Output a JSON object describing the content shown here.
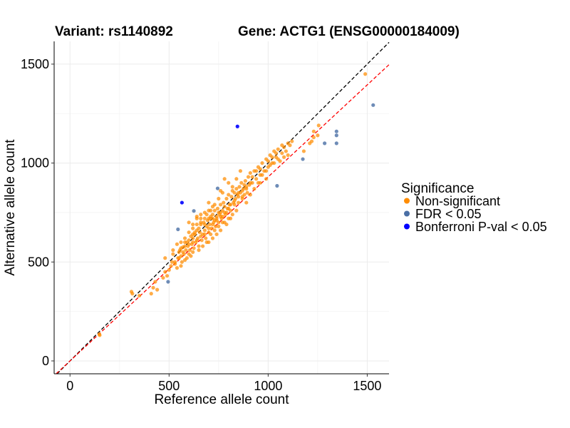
{
  "chart_data": {
    "type": "scatter",
    "title_left": "Variant: rs1140892",
    "title_right": "Gene: ACTG1 (ENSG00000184009)",
    "xlabel": "Reference allele count",
    "ylabel": "Alternative allele count",
    "xlim": [
      -80,
      1610
    ],
    "ylim": [
      -65,
      1615
    ],
    "xticks": [
      0,
      500,
      1000,
      1500
    ],
    "yticks": [
      0,
      500,
      1000,
      1500
    ],
    "grid": true,
    "reference_lines": [
      {
        "name": "identity",
        "slope": 1.0,
        "intercept": 0,
        "color": "#000000",
        "style": "dashed"
      },
      {
        "name": "fit",
        "slope": 0.93,
        "intercept": 0,
        "color": "#ff0000",
        "style": "dashed"
      }
    ],
    "legend": {
      "title": "Significance",
      "position": "right",
      "entries": [
        {
          "label": "Non-significant",
          "color": "#ff8c00"
        },
        {
          "label": "FDR < 0.05",
          "color": "#4a6fa5"
        },
        {
          "label": "Bonferroni P-val < 0.05",
          "color": "#0000ff"
        }
      ]
    },
    "series": [
      {
        "name": "Non-significant",
        "color": "#ff8c00",
        "points": [
          [
            150,
            130
          ],
          [
            148,
            135
          ],
          [
            310,
            350
          ],
          [
            315,
            340
          ],
          [
            350,
            330
          ],
          [
            410,
            340
          ],
          [
            420,
            370
          ],
          [
            430,
            400
          ],
          [
            440,
            360
          ],
          [
            470,
            420
          ],
          [
            480,
            450
          ],
          [
            480,
            520
          ],
          [
            490,
            430
          ],
          [
            500,
            460
          ],
          [
            510,
            480
          ],
          [
            515,
            500
          ],
          [
            520,
            540
          ],
          [
            530,
            500
          ],
          [
            540,
            470
          ],
          [
            545,
            520
          ],
          [
            550,
            550
          ],
          [
            555,
            560
          ],
          [
            560,
            530
          ],
          [
            565,
            500
          ],
          [
            570,
            575
          ],
          [
            575,
            540
          ],
          [
            580,
            600
          ],
          [
            585,
            560
          ],
          [
            590,
            520
          ],
          [
            595,
            580
          ],
          [
            600,
            610
          ],
          [
            605,
            560
          ],
          [
            610,
            530
          ],
          [
            615,
            590
          ],
          [
            620,
            620
          ],
          [
            625,
            570
          ],
          [
            630,
            640
          ],
          [
            635,
            600
          ],
          [
            640,
            660
          ],
          [
            645,
            620
          ],
          [
            650,
            580
          ],
          [
            655,
            650
          ],
          [
            660,
            690
          ],
          [
            665,
            610
          ],
          [
            670,
            640
          ],
          [
            675,
            700
          ],
          [
            680,
            660
          ],
          [
            685,
            620
          ],
          [
            690,
            680
          ],
          [
            695,
            710
          ],
          [
            700,
            650
          ],
          [
            705,
            690
          ],
          [
            710,
            720
          ],
          [
            715,
            670
          ],
          [
            720,
            740
          ],
          [
            725,
            700
          ],
          [
            730,
            760
          ],
          [
            735,
            680
          ],
          [
            740,
            720
          ],
          [
            745,
            770
          ],
          [
            750,
            700
          ],
          [
            755,
            740
          ],
          [
            760,
            790
          ],
          [
            765,
            720
          ],
          [
            770,
            760
          ],
          [
            775,
            800
          ],
          [
            780,
            780
          ],
          [
            785,
            740
          ],
          [
            790,
            820
          ],
          [
            795,
            770
          ],
          [
            800,
            840
          ],
          [
            805,
            790
          ],
          [
            810,
            760
          ],
          [
            815,
            830
          ],
          [
            820,
            860
          ],
          [
            825,
            800
          ],
          [
            830,
            850
          ],
          [
            835,
            820
          ],
          [
            840,
            870
          ],
          [
            845,
            840
          ],
          [
            850,
            800
          ],
          [
            855,
            880
          ],
          [
            860,
            850
          ],
          [
            865,
            900
          ],
          [
            870,
            830
          ],
          [
            875,
            870
          ],
          [
            880,
            840
          ],
          [
            885,
            910
          ],
          [
            890,
            880
          ],
          [
            895,
            850
          ],
          [
            900,
            930
          ],
          [
            905,
            890
          ],
          [
            910,
            950
          ],
          [
            920,
            900
          ],
          [
            930,
            960
          ],
          [
            940,
            920
          ],
          [
            950,
            980
          ],
          [
            960,
            940
          ],
          [
            970,
            1000
          ],
          [
            980,
            960
          ],
          [
            990,
            1020
          ],
          [
            1000,
            980
          ],
          [
            1010,
            1040
          ],
          [
            1020,
            1000
          ],
          [
            1030,
            1060
          ],
          [
            1040,
            1030
          ],
          [
            1050,
            1070
          ],
          [
            1060,
            1010
          ],
          [
            1070,
            1050
          ],
          [
            1080,
            1030
          ],
          [
            1090,
            1060
          ],
          [
            1100,
            1040
          ],
          [
            1110,
            1090
          ],
          [
            1180,
            1060
          ],
          [
            1210,
            1100
          ],
          [
            1220,
            1110
          ],
          [
            1230,
            1130
          ],
          [
            1250,
            1140
          ],
          [
            1255,
            1190
          ],
          [
            1490,
            1450
          ],
          [
            600,
            700
          ],
          [
            620,
            690
          ],
          [
            640,
            720
          ],
          [
            660,
            740
          ],
          [
            680,
            750
          ],
          [
            700,
            760
          ],
          [
            720,
            780
          ],
          [
            640,
            730
          ],
          [
            660,
            700
          ],
          [
            690,
            740
          ],
          [
            710,
            760
          ],
          [
            730,
            790
          ],
          [
            750,
            820
          ],
          [
            770,
            850
          ],
          [
            700,
            600
          ],
          [
            720,
            620
          ],
          [
            740,
            640
          ],
          [
            760,
            660
          ],
          [
            780,
            700
          ],
          [
            800,
            720
          ],
          [
            820,
            740
          ],
          [
            840,
            760
          ],
          [
            650,
            560
          ],
          [
            670,
            580
          ],
          [
            690,
            600
          ],
          [
            710,
            640
          ],
          [
            730,
            660
          ],
          [
            560,
            600
          ],
          [
            580,
            620
          ],
          [
            600,
            650
          ],
          [
            620,
            670
          ],
          [
            640,
            690
          ],
          [
            760,
            860
          ],
          [
            800,
            900
          ],
          [
            780,
            920
          ],
          [
            840,
            920
          ],
          [
            820,
            880
          ],
          [
            860,
            960
          ],
          [
            700,
            800
          ],
          [
            710,
            730
          ],
          [
            730,
            710
          ],
          [
            750,
            750
          ],
          [
            770,
            730
          ],
          [
            790,
            750
          ],
          [
            810,
            790
          ],
          [
            830,
            810
          ],
          [
            850,
            830
          ],
          [
            870,
            860
          ],
          [
            890,
            870
          ],
          [
            910,
            900
          ],
          [
            520,
            560
          ],
          [
            540,
            590
          ],
          [
            560,
            570
          ],
          [
            580,
            580
          ],
          [
            600,
            590
          ],
          [
            620,
            600
          ],
          [
            640,
            610
          ],
          [
            660,
            630
          ],
          [
            680,
            640
          ],
          [
            700,
            670
          ],
          [
            720,
            690
          ],
          [
            740,
            710
          ],
          [
            760,
            730
          ],
          [
            780,
            750
          ],
          [
            800,
            770
          ],
          [
            660,
            720
          ],
          [
            680,
            720
          ],
          [
            720,
            720
          ],
          [
            600,
            540
          ],
          [
            620,
            550
          ],
          [
            580,
            510
          ],
          [
            560,
            480
          ],
          [
            950,
            900
          ],
          [
            970,
            940
          ],
          [
            990,
            960
          ],
          [
            1010,
            990
          ],
          [
            1030,
            1000
          ],
          [
            1050,
            1020
          ],
          [
            1080,
            1080
          ],
          [
            1100,
            1100
          ],
          [
            870,
            820
          ],
          [
            890,
            800
          ],
          [
            910,
            840
          ],
          [
            930,
            870
          ],
          [
            960,
            900
          ],
          [
            990,
            920
          ],
          [
            750,
            680
          ],
          [
            770,
            700
          ],
          [
            790,
            690
          ],
          [
            810,
            720
          ],
          [
            680,
            690
          ],
          [
            650,
            670
          ],
          [
            630,
            650
          ],
          [
            610,
            630
          ],
          [
            590,
            600
          ],
          [
            570,
            550
          ],
          [
            550,
            520
          ],
          [
            530,
            490
          ],
          [
            620,
            640
          ],
          [
            700,
            720
          ],
          [
            740,
            730
          ],
          [
            760,
            750
          ],
          [
            830,
            790
          ],
          [
            850,
            850
          ],
          [
            880,
            890
          ],
          [
            920,
            930
          ],
          [
            940,
            960
          ],
          [
            960,
            970
          ],
          [
            1000,
            1010
          ],
          [
            1020,
            1030
          ],
          [
            1040,
            1050
          ],
          [
            1070,
            1090
          ],
          [
            1120,
            1110
          ],
          [
            1230,
            1160
          ]
        ]
      },
      {
        "name": "FDR < 0.05",
        "color": "#4a6fa5",
        "points": [
          [
            545,
            665
          ],
          [
            625,
            758
          ],
          [
            745,
            872
          ],
          [
            495,
            400
          ],
          [
            1045,
            885
          ],
          [
            1175,
            1020
          ],
          [
            1285,
            1100
          ],
          [
            1345,
            1100
          ],
          [
            1345,
            1140
          ],
          [
            1345,
            1160
          ],
          [
            1530,
            1293
          ]
        ]
      },
      {
        "name": "Bonferroni P-val < 0.05",
        "color": "#0000ff",
        "points": [
          [
            845,
            1185
          ],
          [
            565,
            800
          ]
        ]
      }
    ]
  }
}
